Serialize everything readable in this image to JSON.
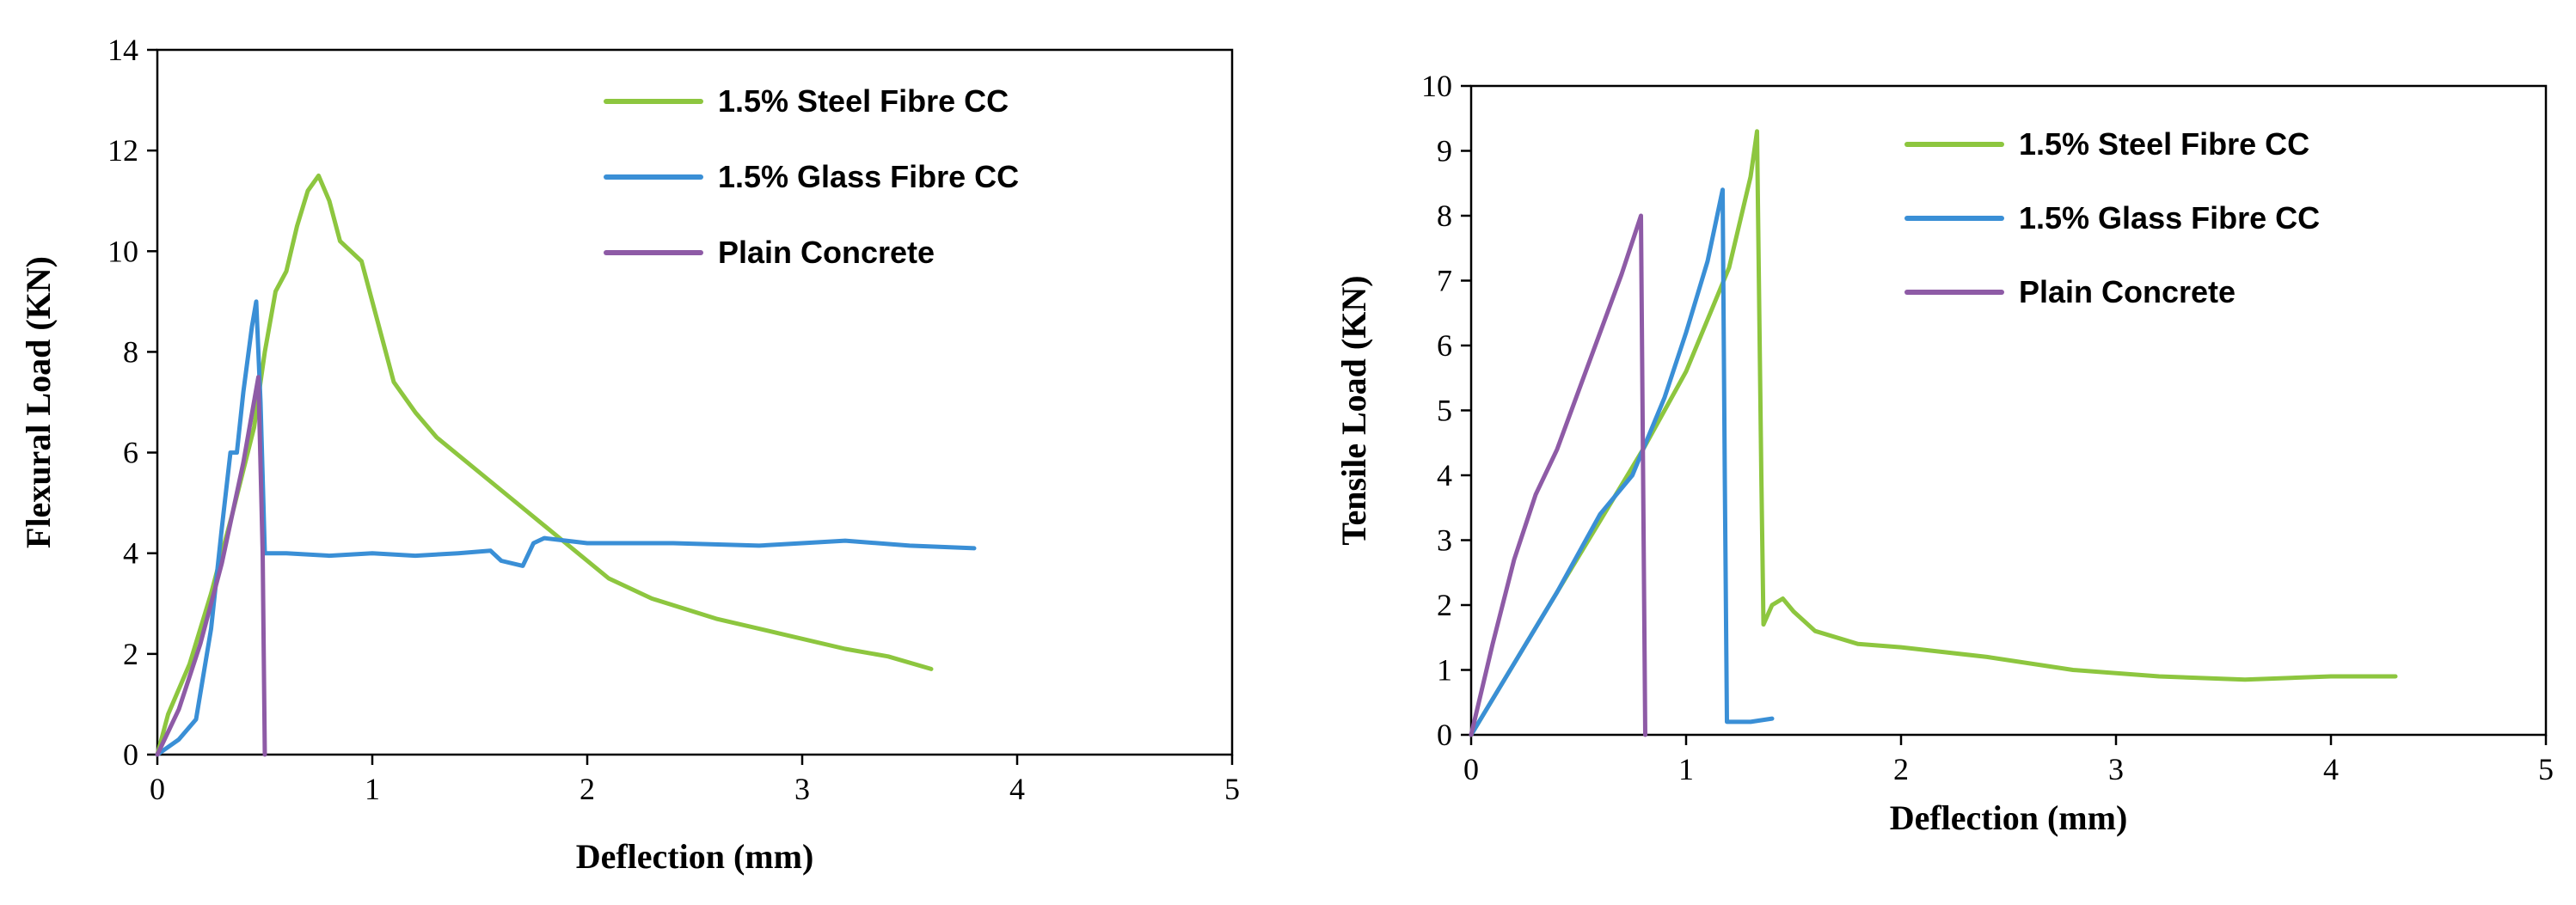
{
  "chart_data": [
    {
      "type": "line",
      "title": "",
      "xlabel": "Deflection (mm)",
      "ylabel": "Flexural Load (KN)",
      "xlim": [
        0,
        5
      ],
      "ylim": [
        0,
        14
      ],
      "x_ticks": [
        0,
        1,
        2,
        3,
        4,
        5
      ],
      "y_ticks": [
        0,
        2,
        4,
        6,
        8,
        10,
        12,
        14
      ],
      "grid": false,
      "legend_position": "top-right",
      "series": [
        {
          "name": "1.5% Steel Fibre CC",
          "color": "#8dc63f",
          "points": [
            [
              0,
              0
            ],
            [
              0.05,
              0.8
            ],
            [
              0.15,
              1.8
            ],
            [
              0.25,
              3.2
            ],
            [
              0.35,
              4.8
            ],
            [
              0.45,
              6.5
            ],
            [
              0.5,
              8.0
            ],
            [
              0.55,
              9.2
            ],
            [
              0.6,
              9.6
            ],
            [
              0.65,
              10.5
            ],
            [
              0.7,
              11.2
            ],
            [
              0.75,
              11.5
            ],
            [
              0.8,
              11.0
            ],
            [
              0.85,
              10.2
            ],
            [
              0.95,
              9.8
            ],
            [
              1.05,
              8.2
            ],
            [
              1.1,
              7.4
            ],
            [
              1.2,
              6.8
            ],
            [
              1.3,
              6.3
            ],
            [
              1.5,
              5.6
            ],
            [
              1.7,
              4.9
            ],
            [
              1.9,
              4.2
            ],
            [
              2.1,
              3.5
            ],
            [
              2.3,
              3.1
            ],
            [
              2.6,
              2.7
            ],
            [
              2.9,
              2.4
            ],
            [
              3.2,
              2.1
            ],
            [
              3.4,
              1.95
            ],
            [
              3.6,
              1.7
            ]
          ]
        },
        {
          "name": "1.5% Glass Fibre CC",
          "color": "#3a8fd6",
          "points": [
            [
              0,
              0
            ],
            [
              0.1,
              0.3
            ],
            [
              0.18,
              0.7
            ],
            [
              0.25,
              2.5
            ],
            [
              0.3,
              4.5
            ],
            [
              0.34,
              6.0
            ],
            [
              0.37,
              6.0
            ],
            [
              0.4,
              7.2
            ],
            [
              0.44,
              8.5
            ],
            [
              0.46,
              9.0
            ],
            [
              0.48,
              7.0
            ],
            [
              0.5,
              4.0
            ],
            [
              0.6,
              4.0
            ],
            [
              0.8,
              3.95
            ],
            [
              1.0,
              4.0
            ],
            [
              1.2,
              3.95
            ],
            [
              1.4,
              4.0
            ],
            [
              1.55,
              4.05
            ],
            [
              1.6,
              3.85
            ],
            [
              1.7,
              3.75
            ],
            [
              1.75,
              4.2
            ],
            [
              1.8,
              4.3
            ],
            [
              2.0,
              4.2
            ],
            [
              2.4,
              4.2
            ],
            [
              2.8,
              4.15
            ],
            [
              3.2,
              4.25
            ],
            [
              3.5,
              4.15
            ],
            [
              3.8,
              4.1
            ]
          ]
        },
        {
          "name": "Plain Concrete",
          "color": "#8e5ba6",
          "points": [
            [
              0,
              0
            ],
            [
              0.1,
              0.9
            ],
            [
              0.2,
              2.2
            ],
            [
              0.3,
              3.8
            ],
            [
              0.4,
              5.8
            ],
            [
              0.47,
              7.5
            ],
            [
              0.49,
              4.0
            ],
            [
              0.5,
              0
            ]
          ]
        }
      ]
    },
    {
      "type": "line",
      "title": "",
      "xlabel": "Deflection (mm)",
      "ylabel": "Tensile Load (KN)",
      "xlim": [
        0,
        5
      ],
      "ylim": [
        0,
        10
      ],
      "x_ticks": [
        0,
        1,
        2,
        3,
        4,
        5
      ],
      "y_ticks": [
        0,
        1,
        2,
        3,
        4,
        5,
        6,
        7,
        8,
        9,
        10
      ],
      "grid": false,
      "legend_position": "top-right",
      "series": [
        {
          "name": "1.5% Steel Fibre CC",
          "color": "#8dc63f",
          "points": [
            [
              0,
              0
            ],
            [
              0.2,
              1.1
            ],
            [
              0.4,
              2.2
            ],
            [
              0.6,
              3.3
            ],
            [
              0.8,
              4.4
            ],
            [
              1.0,
              5.6
            ],
            [
              1.2,
              7.2
            ],
            [
              1.3,
              8.6
            ],
            [
              1.33,
              9.3
            ],
            [
              1.35,
              4.0
            ],
            [
              1.36,
              1.7
            ],
            [
              1.4,
              2.0
            ],
            [
              1.45,
              2.1
            ],
            [
              1.5,
              1.9
            ],
            [
              1.6,
              1.6
            ],
            [
              1.8,
              1.4
            ],
            [
              2.0,
              1.35
            ],
            [
              2.4,
              1.2
            ],
            [
              2.8,
              1.0
            ],
            [
              3.2,
              0.9
            ],
            [
              3.6,
              0.85
            ],
            [
              4.0,
              0.9
            ],
            [
              4.3,
              0.9
            ]
          ]
        },
        {
          "name": "1.5% Glass Fibre CC",
          "color": "#3a8fd6",
          "points": [
            [
              0,
              0
            ],
            [
              0.2,
              1.1
            ],
            [
              0.4,
              2.2
            ],
            [
              0.6,
              3.4
            ],
            [
              0.75,
              4.0
            ],
            [
              0.9,
              5.2
            ],
            [
              1.0,
              6.2
            ],
            [
              1.1,
              7.3
            ],
            [
              1.17,
              8.4
            ],
            [
              1.18,
              4.0
            ],
            [
              1.19,
              0.2
            ],
            [
              1.3,
              0.2
            ],
            [
              1.4,
              0.25
            ]
          ]
        },
        {
          "name": "Plain Concrete",
          "color": "#8e5ba6",
          "points": [
            [
              0,
              0
            ],
            [
              0.1,
              1.4
            ],
            [
              0.2,
              2.7
            ],
            [
              0.3,
              3.7
            ],
            [
              0.4,
              4.4
            ],
            [
              0.5,
              5.3
            ],
            [
              0.6,
              6.2
            ],
            [
              0.7,
              7.1
            ],
            [
              0.79,
              8.0
            ],
            [
              0.8,
              4.0
            ],
            [
              0.81,
              0
            ]
          ]
        }
      ]
    }
  ]
}
